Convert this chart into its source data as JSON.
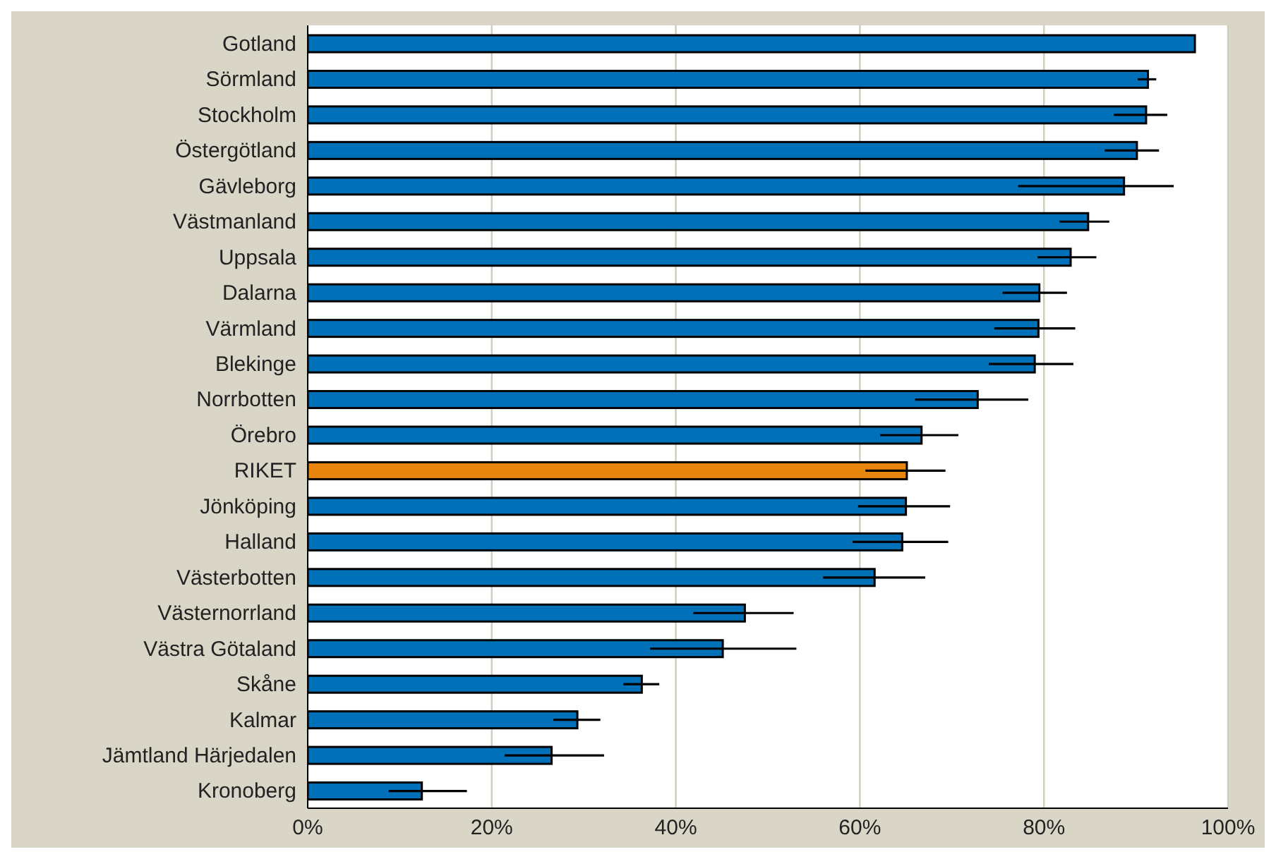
{
  "chart_data": {
    "type": "bar",
    "orientation": "horizontal",
    "categories": [
      "Gotland",
      "Sörmland",
      "Stockholm",
      "Östergötland",
      "Gävleborg",
      "Västmanland",
      "Uppsala",
      "Dalarna",
      "Värmland",
      "Blekinge",
      "Norrbotten",
      "Örebro",
      "RIKET",
      "Jönköping",
      "Halland",
      "Västerbotten",
      "Västernorrland",
      "Västra Götaland",
      "Skåne",
      "Kalmar",
      "Jämtland Härjedalen",
      "Kronoberg"
    ],
    "values": [
      96.4,
      91.3,
      91.1,
      90.1,
      88.7,
      84.8,
      82.9,
      79.5,
      79.4,
      79.0,
      72.8,
      66.7,
      65.1,
      65.0,
      64.6,
      61.6,
      47.5,
      45.1,
      36.3,
      29.3,
      26.5,
      12.4
    ],
    "errors": [
      null,
      [
        90.2,
        92.2
      ],
      [
        87.6,
        93.4
      ],
      [
        86.6,
        92.5
      ],
      [
        77.2,
        94.1
      ],
      [
        81.7,
        87.1
      ],
      [
        79.3,
        85.7
      ],
      [
        75.5,
        82.5
      ],
      [
        74.6,
        83.4
      ],
      [
        74.0,
        83.2
      ],
      [
        66.0,
        78.3
      ],
      [
        62.2,
        70.7
      ],
      [
        60.6,
        69.3
      ],
      [
        59.8,
        69.8
      ],
      [
        59.2,
        69.6
      ],
      [
        56.0,
        67.1
      ],
      [
        41.9,
        52.8
      ],
      [
        37.2,
        53.1
      ],
      [
        34.3,
        38.2
      ],
      [
        26.7,
        31.8
      ],
      [
        21.4,
        32.2
      ],
      [
        8.8,
        17.3
      ]
    ],
    "colors": [
      "#0070b8",
      "#0070b8",
      "#0070b8",
      "#0070b8",
      "#0070b8",
      "#0070b8",
      "#0070b8",
      "#0070b8",
      "#0070b8",
      "#0070b8",
      "#0070b8",
      "#0070b8",
      "#e8850c",
      "#0070b8",
      "#0070b8",
      "#0070b8",
      "#0070b8",
      "#0070b8",
      "#0070b8",
      "#0070b8",
      "#0070b8",
      "#0070b8"
    ],
    "xlim": [
      0,
      100
    ],
    "xticks": [
      {
        "value": 0,
        "label": "0%"
      },
      {
        "value": 20,
        "label": "20%"
      },
      {
        "value": 40,
        "label": "40%"
      },
      {
        "value": 60,
        "label": "60%"
      },
      {
        "value": 80,
        "label": "80%"
      },
      {
        "value": 100,
        "label": "100%"
      }
    ],
    "grid": "x",
    "legend": false
  }
}
